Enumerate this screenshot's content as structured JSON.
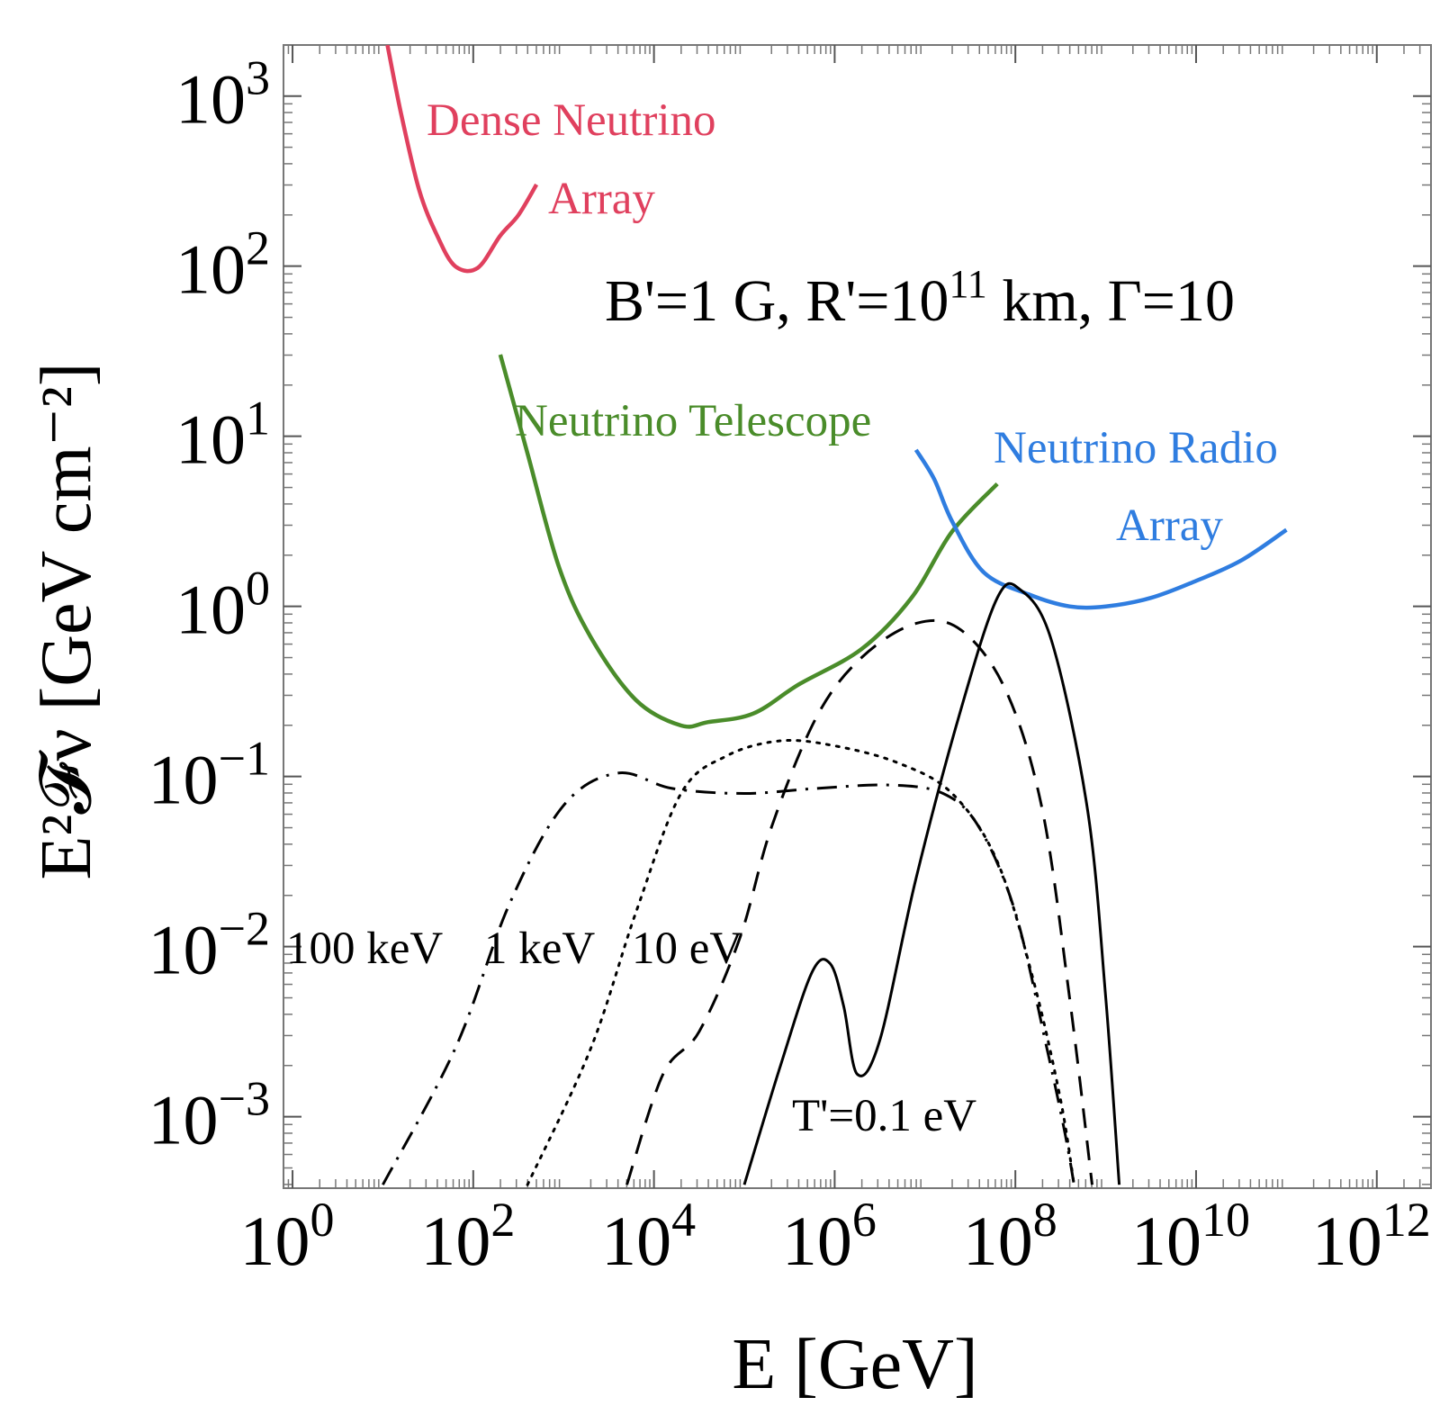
{
  "chart_data": {
    "type": "line",
    "title": "",
    "xlabel": "E [GeV]",
    "ylabel": "E²𝓕ν [GeV cm⁻²]",
    "xscale": "log",
    "yscale": "log",
    "xlim_log10": [
      -0.1,
      12.6
    ],
    "ylim_log10": [
      -3.42,
      3.3
    ],
    "x_ticks": [
      {
        "base": "10",
        "exp": "0"
      },
      {
        "base": "10",
        "exp": "2"
      },
      {
        "base": "10",
        "exp": "4"
      },
      {
        "base": "10",
        "exp": "6"
      },
      {
        "base": "10",
        "exp": "8"
      },
      {
        "base": "10",
        "exp": "10"
      },
      {
        "base": "10",
        "exp": "12"
      }
    ],
    "y_ticks": [
      {
        "base": "10",
        "exp": "−3"
      },
      {
        "base": "10",
        "exp": "−2"
      },
      {
        "base": "10",
        "exp": "−1"
      },
      {
        "base": "10",
        "exp": "0"
      },
      {
        "base": "10",
        "exp": "1"
      },
      {
        "base": "10",
        "exp": "2"
      },
      {
        "base": "10",
        "exp": "3"
      }
    ],
    "x_tick_values_log10": [
      0,
      2,
      4,
      6,
      8,
      10,
      12
    ],
    "y_tick_values_log10": [
      -3,
      -2,
      -1,
      0,
      1,
      2,
      3
    ],
    "parameters_label": {
      "prefix": "B'=1 G, R'=10",
      "exp": "11",
      "suffix": " km, Γ=10"
    },
    "colors": {
      "dense": "#e0405e",
      "telescope": "#4a8c2a",
      "radio": "#2f7de0",
      "model": "#000000",
      "frame": "#777777"
    },
    "series": [
      {
        "name": "Dense Neutrino Array",
        "label_lines": [
          "Dense Neutrino",
          "Array"
        ],
        "color_key": "dense",
        "dash": "solid",
        "points_log10": [
          [
            1.05,
            3.3
          ],
          [
            1.2,
            2.9
          ],
          [
            1.4,
            2.45
          ],
          [
            1.6,
            2.18
          ],
          [
            1.8,
            2.0
          ],
          [
            2.05,
            1.99
          ],
          [
            2.3,
            2.18
          ],
          [
            2.5,
            2.3
          ],
          [
            2.7,
            2.48
          ]
        ]
      },
      {
        "name": "Neutrino Telescope",
        "label_lines": [
          "Neutrino Telescope"
        ],
        "color_key": "telescope",
        "dash": "solid",
        "points_log10": [
          [
            2.3,
            1.48
          ],
          [
            2.6,
            0.9
          ],
          [
            2.95,
            0.23
          ],
          [
            3.3,
            -0.18
          ],
          [
            3.8,
            -0.55
          ],
          [
            4.3,
            -0.7
          ],
          [
            4.6,
            -0.68
          ],
          [
            5.1,
            -0.63
          ],
          [
            5.6,
            -0.46
          ],
          [
            6.3,
            -0.25
          ],
          [
            6.85,
            0.05
          ],
          [
            7.3,
            0.44
          ],
          [
            7.8,
            0.72
          ]
        ]
      },
      {
        "name": "Neutrino Radio Array",
        "label_lines": [
          "Neutrino Radio",
          "Array"
        ],
        "color_key": "radio",
        "dash": "solid",
        "points_log10": [
          [
            6.9,
            0.92
          ],
          [
            7.1,
            0.75
          ],
          [
            7.3,
            0.5
          ],
          [
            7.65,
            0.2
          ],
          [
            8.15,
            0.07
          ],
          [
            8.6,
            0.0
          ],
          [
            9.0,
            0.0
          ],
          [
            9.5,
            0.05
          ],
          [
            10.0,
            0.15
          ],
          [
            10.5,
            0.27
          ],
          [
            11.0,
            0.45
          ]
        ]
      },
      {
        "name": "T'=100 keV",
        "label": "100 keV",
        "color_key": "model",
        "dash": "dashdot",
        "points_log10": [
          [
            1.0,
            -3.4
          ],
          [
            1.8,
            -2.6
          ],
          [
            2.4,
            -1.75
          ],
          [
            3.0,
            -1.17
          ],
          [
            3.6,
            -0.98
          ],
          [
            4.2,
            -1.07
          ],
          [
            5.0,
            -1.1
          ],
          [
            5.8,
            -1.07
          ],
          [
            6.6,
            -1.05
          ],
          [
            7.2,
            -1.1
          ],
          [
            7.6,
            -1.3
          ],
          [
            8.0,
            -1.8
          ],
          [
            8.35,
            -2.6
          ],
          [
            8.55,
            -3.1
          ],
          [
            8.65,
            -3.4
          ]
        ]
      },
      {
        "name": "T'=1 keV",
        "label": "1 keV",
        "color_key": "model",
        "dash": "dotted",
        "points_log10": [
          [
            2.6,
            -3.4
          ],
          [
            3.3,
            -2.6
          ],
          [
            3.8,
            -1.8
          ],
          [
            4.3,
            -1.1
          ],
          [
            4.8,
            -0.88
          ],
          [
            5.4,
            -0.79
          ],
          [
            6.0,
            -0.82
          ],
          [
            6.7,
            -0.92
          ],
          [
            7.3,
            -1.1
          ],
          [
            7.8,
            -1.5
          ],
          [
            8.2,
            -2.2
          ],
          [
            8.5,
            -2.9
          ],
          [
            8.65,
            -3.4
          ]
        ]
      },
      {
        "name": "T'=10 eV",
        "label": "10 eV",
        "color_key": "model",
        "dash": "dashed",
        "points_log10": [
          [
            3.7,
            -3.4
          ],
          [
            4.1,
            -2.75
          ],
          [
            4.5,
            -2.5
          ],
          [
            4.95,
            -1.95
          ],
          [
            5.3,
            -1.3
          ],
          [
            5.8,
            -0.65
          ],
          [
            6.3,
            -0.3
          ],
          [
            6.9,
            -0.1
          ],
          [
            7.4,
            -0.14
          ],
          [
            7.9,
            -0.5
          ],
          [
            8.3,
            -1.2
          ],
          [
            8.6,
            -2.3
          ],
          [
            8.85,
            -3.4
          ]
        ]
      },
      {
        "name": "T'=0.1 eV",
        "label": "T'=0.1 eV",
        "color_key": "model",
        "dash": "solid",
        "points_log10": [
          [
            5.0,
            -3.4
          ],
          [
            5.4,
            -2.7
          ],
          [
            5.75,
            -2.15
          ],
          [
            5.95,
            -2.1
          ],
          [
            6.1,
            -2.35
          ],
          [
            6.25,
            -2.75
          ],
          [
            6.5,
            -2.55
          ],
          [
            6.9,
            -1.6
          ],
          [
            7.4,
            -0.6
          ],
          [
            7.8,
            0.05
          ],
          [
            8.05,
            0.1
          ],
          [
            8.4,
            -0.2
          ],
          [
            8.8,
            -1.2
          ],
          [
            9.0,
            -2.3
          ],
          [
            9.15,
            -3.4
          ]
        ]
      }
    ]
  }
}
